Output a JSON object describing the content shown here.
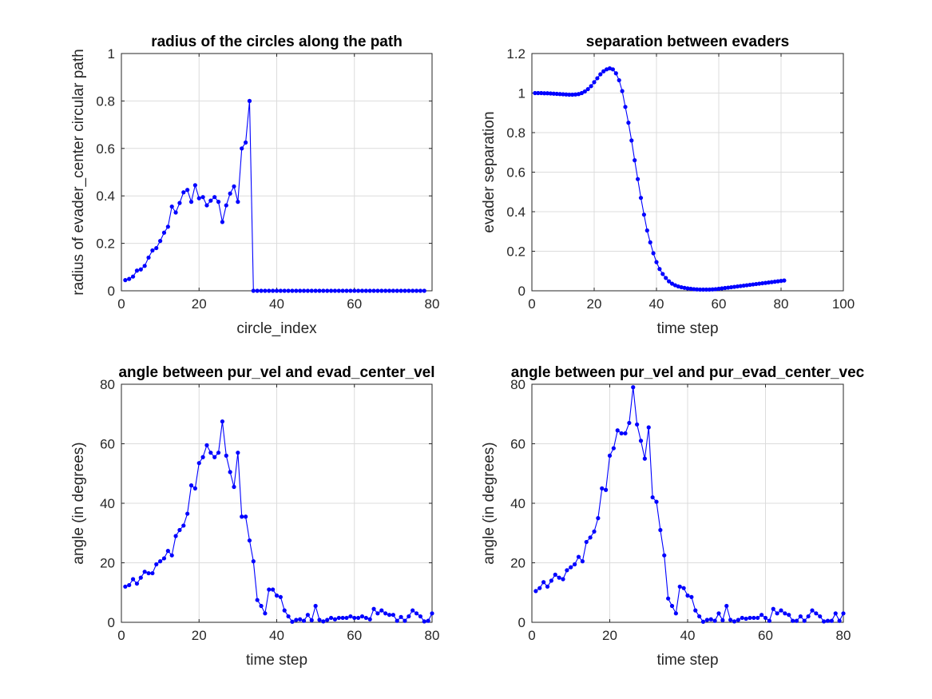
{
  "chart_data": [
    {
      "type": "line",
      "title": "radius of the circles along the path",
      "xlabel": "circle_index",
      "ylabel": "radius of evader_center circular path",
      "xlim": [
        0,
        80
      ],
      "ylim": [
        0,
        1
      ],
      "xticks": [
        0,
        20,
        40,
        60,
        80
      ],
      "yticks": [
        0,
        0.2,
        0.4,
        0.6,
        0.8,
        1
      ],
      "ytick_labels": [
        "0",
        "0.2",
        "0.4",
        "0.6",
        "0.8",
        "1"
      ],
      "grid": true,
      "color": "#0000ff",
      "series": [
        {
          "x": [
            1,
            2,
            3,
            4,
            5,
            6,
            7,
            8,
            9,
            10,
            11,
            12,
            13,
            14,
            15,
            16,
            17,
            18,
            19,
            20,
            21,
            22,
            23,
            24,
            25,
            26,
            27,
            28,
            29,
            30,
            31,
            32,
            33,
            34,
            35,
            36,
            37,
            38,
            39,
            40,
            41,
            42,
            43,
            44,
            45,
            46,
            47,
            48,
            49,
            50,
            51,
            52,
            53,
            54,
            55,
            56,
            57,
            58,
            59,
            60,
            61,
            62,
            63,
            64,
            65,
            66,
            67,
            68,
            69,
            70,
            71,
            72,
            73,
            74,
            75,
            76,
            77,
            78
          ],
          "y": [
            0.045,
            0.05,
            0.06,
            0.085,
            0.09,
            0.105,
            0.14,
            0.17,
            0.18,
            0.21,
            0.245,
            0.27,
            0.355,
            0.33,
            0.37,
            0.415,
            0.425,
            0.375,
            0.445,
            0.39,
            0.395,
            0.36,
            0.38,
            0.395,
            0.375,
            0.29,
            0.36,
            0.41,
            0.44,
            0.375,
            0.6,
            0.625,
            0.8,
            0,
            0,
            0,
            0,
            0,
            0,
            0,
            0,
            0,
            0,
            0,
            0,
            0,
            0,
            0,
            0,
            0,
            0,
            0,
            0,
            0,
            0,
            0,
            0,
            0,
            0,
            0,
            0,
            0,
            0,
            0,
            0,
            0,
            0,
            0,
            0,
            0,
            0,
            0,
            0,
            0,
            0,
            0,
            0,
            0
          ]
        }
      ]
    },
    {
      "type": "line",
      "title": "separation between evaders",
      "xlabel": "time step",
      "ylabel": "evader separation",
      "xlim": [
        0,
        100
      ],
      "ylim": [
        0,
        1.2
      ],
      "xticks": [
        0,
        20,
        40,
        60,
        80,
        100
      ],
      "yticks": [
        0,
        0.2,
        0.4,
        0.6,
        0.8,
        1,
        1.2
      ],
      "ytick_labels": [
        "0",
        "0.2",
        "0.4",
        "0.6",
        "0.8",
        "1",
        "1.2"
      ],
      "grid": true,
      "color": "#0000ff",
      "series": [
        {
          "x": [
            1,
            2,
            3,
            4,
            5,
            6,
            7,
            8,
            9,
            10,
            11,
            12,
            13,
            14,
            15,
            16,
            17,
            18,
            19,
            20,
            21,
            22,
            23,
            24,
            25,
            26,
            27,
            28,
            29,
            30,
            31,
            32,
            33,
            34,
            35,
            36,
            37,
            38,
            39,
            40,
            41,
            42,
            43,
            44,
            45,
            46,
            47,
            48,
            49,
            50,
            51,
            52,
            53,
            54,
            55,
            56,
            57,
            58,
            59,
            60,
            61,
            62,
            63,
            64,
            65,
            66,
            67,
            68,
            69,
            70,
            71,
            72,
            73,
            74,
            75,
            76,
            77,
            78,
            79,
            80,
            81
          ],
          "y": [
            1.0,
            1.0,
            1.0,
            0.999,
            0.999,
            0.998,
            0.997,
            0.996,
            0.995,
            0.994,
            0.993,
            0.992,
            0.992,
            0.993,
            0.995,
            1.0,
            1.008,
            1.02,
            1.035,
            1.055,
            1.075,
            1.095,
            1.11,
            1.12,
            1.125,
            1.12,
            1.1,
            1.065,
            1.01,
            0.93,
            0.85,
            0.76,
            0.66,
            0.565,
            0.47,
            0.385,
            0.305,
            0.245,
            0.19,
            0.145,
            0.11,
            0.085,
            0.065,
            0.048,
            0.036,
            0.028,
            0.022,
            0.018,
            0.015,
            0.012,
            0.01,
            0.008,
            0.007,
            0.006,
            0.006,
            0.006,
            0.006,
            0.007,
            0.008,
            0.01,
            0.012,
            0.014,
            0.016,
            0.018,
            0.02,
            0.022,
            0.024,
            0.026,
            0.028,
            0.03,
            0.032,
            0.034,
            0.036,
            0.038,
            0.04,
            0.042,
            0.044,
            0.046,
            0.048,
            0.05,
            0.052
          ]
        }
      ]
    },
    {
      "type": "line",
      "title": "angle between pur_vel and evad_center_vel",
      "xlabel": "time step",
      "ylabel": "angle (in degrees)",
      "xlim": [
        0,
        80
      ],
      "ylim": [
        0,
        80
      ],
      "xticks": [
        0,
        20,
        40,
        60,
        80
      ],
      "yticks": [
        0,
        20,
        40,
        60,
        80
      ],
      "ytick_labels": [
        "0",
        "20",
        "40",
        "60",
        "80"
      ],
      "grid": true,
      "color": "#0000ff",
      "series": [
        {
          "x": [
            1,
            2,
            3,
            4,
            5,
            6,
            7,
            8,
            9,
            10,
            11,
            12,
            13,
            14,
            15,
            16,
            17,
            18,
            19,
            20,
            21,
            22,
            23,
            24,
            25,
            26,
            27,
            28,
            29,
            30,
            31,
            32,
            33,
            34,
            35,
            36,
            37,
            38,
            39,
            40,
            41,
            42,
            43,
            44,
            45,
            46,
            47,
            48,
            49,
            50,
            51,
            52,
            53,
            54,
            55,
            56,
            57,
            58,
            59,
            60,
            61,
            62,
            63,
            64,
            65,
            66,
            67,
            68,
            69,
            70,
            71,
            72,
            73,
            74,
            75,
            76,
            77,
            78,
            79,
            80
          ],
          "y": [
            12,
            12.5,
            14.5,
            13,
            15,
            17,
            16.5,
            16.5,
            19.5,
            20.5,
            21.5,
            24,
            22.5,
            29,
            31,
            32.5,
            36.5,
            46,
            45,
            53.5,
            55.5,
            59.5,
            57,
            55.5,
            57,
            67.5,
            56,
            50.5,
            45.5,
            57,
            35.5,
            35.5,
            27.5,
            20.5,
            7.5,
            5.5,
            3,
            11,
            11,
            9,
            8.5,
            4,
            2,
            0.2,
            0.8,
            1,
            0.5,
            2.5,
            0.7,
            5.5,
            0.8,
            0.3,
            0.8,
            1.5,
            1,
            1.5,
            1.5,
            1.5,
            2,
            1.5,
            1.5,
            2,
            1.5,
            1,
            4.5,
            3,
            4,
            3,
            2.5,
            2.5,
            0.5,
            1.8,
            0.5,
            2,
            4,
            3,
            2,
            0.3,
            0.5,
            3
          ]
        }
      ]
    },
    {
      "type": "line",
      "title": "angle between pur_vel and pur_evad_center_vec",
      "xlabel": "time step",
      "ylabel": "angle (in degrees)",
      "xlim": [
        0,
        80
      ],
      "ylim": [
        0,
        80
      ],
      "xticks": [
        0,
        20,
        40,
        60,
        80
      ],
      "yticks": [
        0,
        20,
        40,
        60,
        80
      ],
      "ytick_labels": [
        "0",
        "20",
        "40",
        "60",
        "80"
      ],
      "grid": true,
      "color": "#0000ff",
      "series": [
        {
          "x": [
            1,
            2,
            3,
            4,
            5,
            6,
            7,
            8,
            9,
            10,
            11,
            12,
            13,
            14,
            15,
            16,
            17,
            18,
            19,
            20,
            21,
            22,
            23,
            24,
            25,
            26,
            27,
            28,
            29,
            30,
            31,
            32,
            33,
            34,
            35,
            36,
            37,
            38,
            39,
            40,
            41,
            42,
            43,
            44,
            45,
            46,
            47,
            48,
            49,
            50,
            51,
            52,
            53,
            54,
            55,
            56,
            57,
            58,
            59,
            60,
            61,
            62,
            63,
            64,
            65,
            66,
            67,
            68,
            69,
            70,
            71,
            72,
            73,
            74,
            75,
            76,
            77,
            78,
            79,
            80
          ],
          "y": [
            10.5,
            11.5,
            13.5,
            12,
            14,
            16,
            15,
            14.5,
            17.5,
            18.5,
            19.5,
            22,
            20.5,
            27,
            28.5,
            30.5,
            35,
            45,
            44.5,
            56,
            58.5,
            64.5,
            63.5,
            63.5,
            67,
            79,
            66.5,
            61,
            55,
            65.5,
            42,
            40.5,
            31,
            22.5,
            8,
            5.5,
            3,
            12,
            11.5,
            9,
            8.5,
            4,
            2,
            0.2,
            0.8,
            1,
            0.5,
            3,
            0.7,
            5.5,
            0.8,
            0.3,
            0.8,
            1.5,
            1.2,
            1.5,
            1.5,
            1.5,
            2.5,
            1.5,
            0.5,
            4.5,
            3,
            4,
            3,
            2.5,
            0.5,
            0.5,
            2,
            0.5,
            2,
            4,
            3,
            2,
            0.3,
            0.5,
            0.5,
            3,
            0.5,
            3
          ]
        }
      ]
    }
  ]
}
